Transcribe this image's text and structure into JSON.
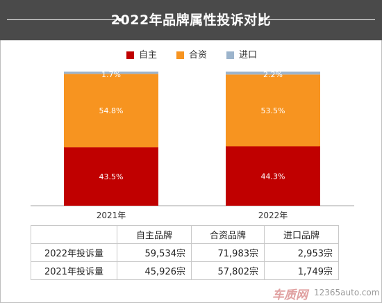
{
  "title": "2022年品牌属性投诉对比",
  "legend": [
    {
      "label": "自主",
      "color": "#c00000"
    },
    {
      "label": "合资",
      "color": "#f79420"
    },
    {
      "label": "进口",
      "color": "#9cb4cc"
    }
  ],
  "chart_data": {
    "type": "bar",
    "stacked": true,
    "categories": [
      "2021年",
      "2022年"
    ],
    "series": [
      {
        "name": "自主",
        "values": [
          43.5,
          44.3
        ],
        "labels": [
          "43.5%",
          "44.3%"
        ],
        "color": "#c00000"
      },
      {
        "name": "合资",
        "values": [
          54.8,
          53.5
        ],
        "labels": [
          "54.8%",
          "53.5%"
        ],
        "color": "#f79420"
      },
      {
        "name": "进口",
        "values": [
          1.7,
          2.2
        ],
        "labels": [
          "1.7%",
          "2.2%"
        ],
        "color": "#9cb4cc"
      }
    ],
    "ylim": [
      0,
      100
    ],
    "grid": false,
    "legend_position": "top"
  },
  "table": {
    "headers": [
      "",
      "自主品牌",
      "合资品牌",
      "进口品牌"
    ],
    "rows": [
      [
        "2022年投诉量",
        "59,534宗",
        "71,983宗",
        "2,953宗"
      ],
      [
        "2021年投诉量",
        "45,926宗",
        "57,802宗",
        "1,749宗"
      ]
    ]
  },
  "watermark": {
    "logo": "车质网",
    "url": "12365auto.com"
  }
}
